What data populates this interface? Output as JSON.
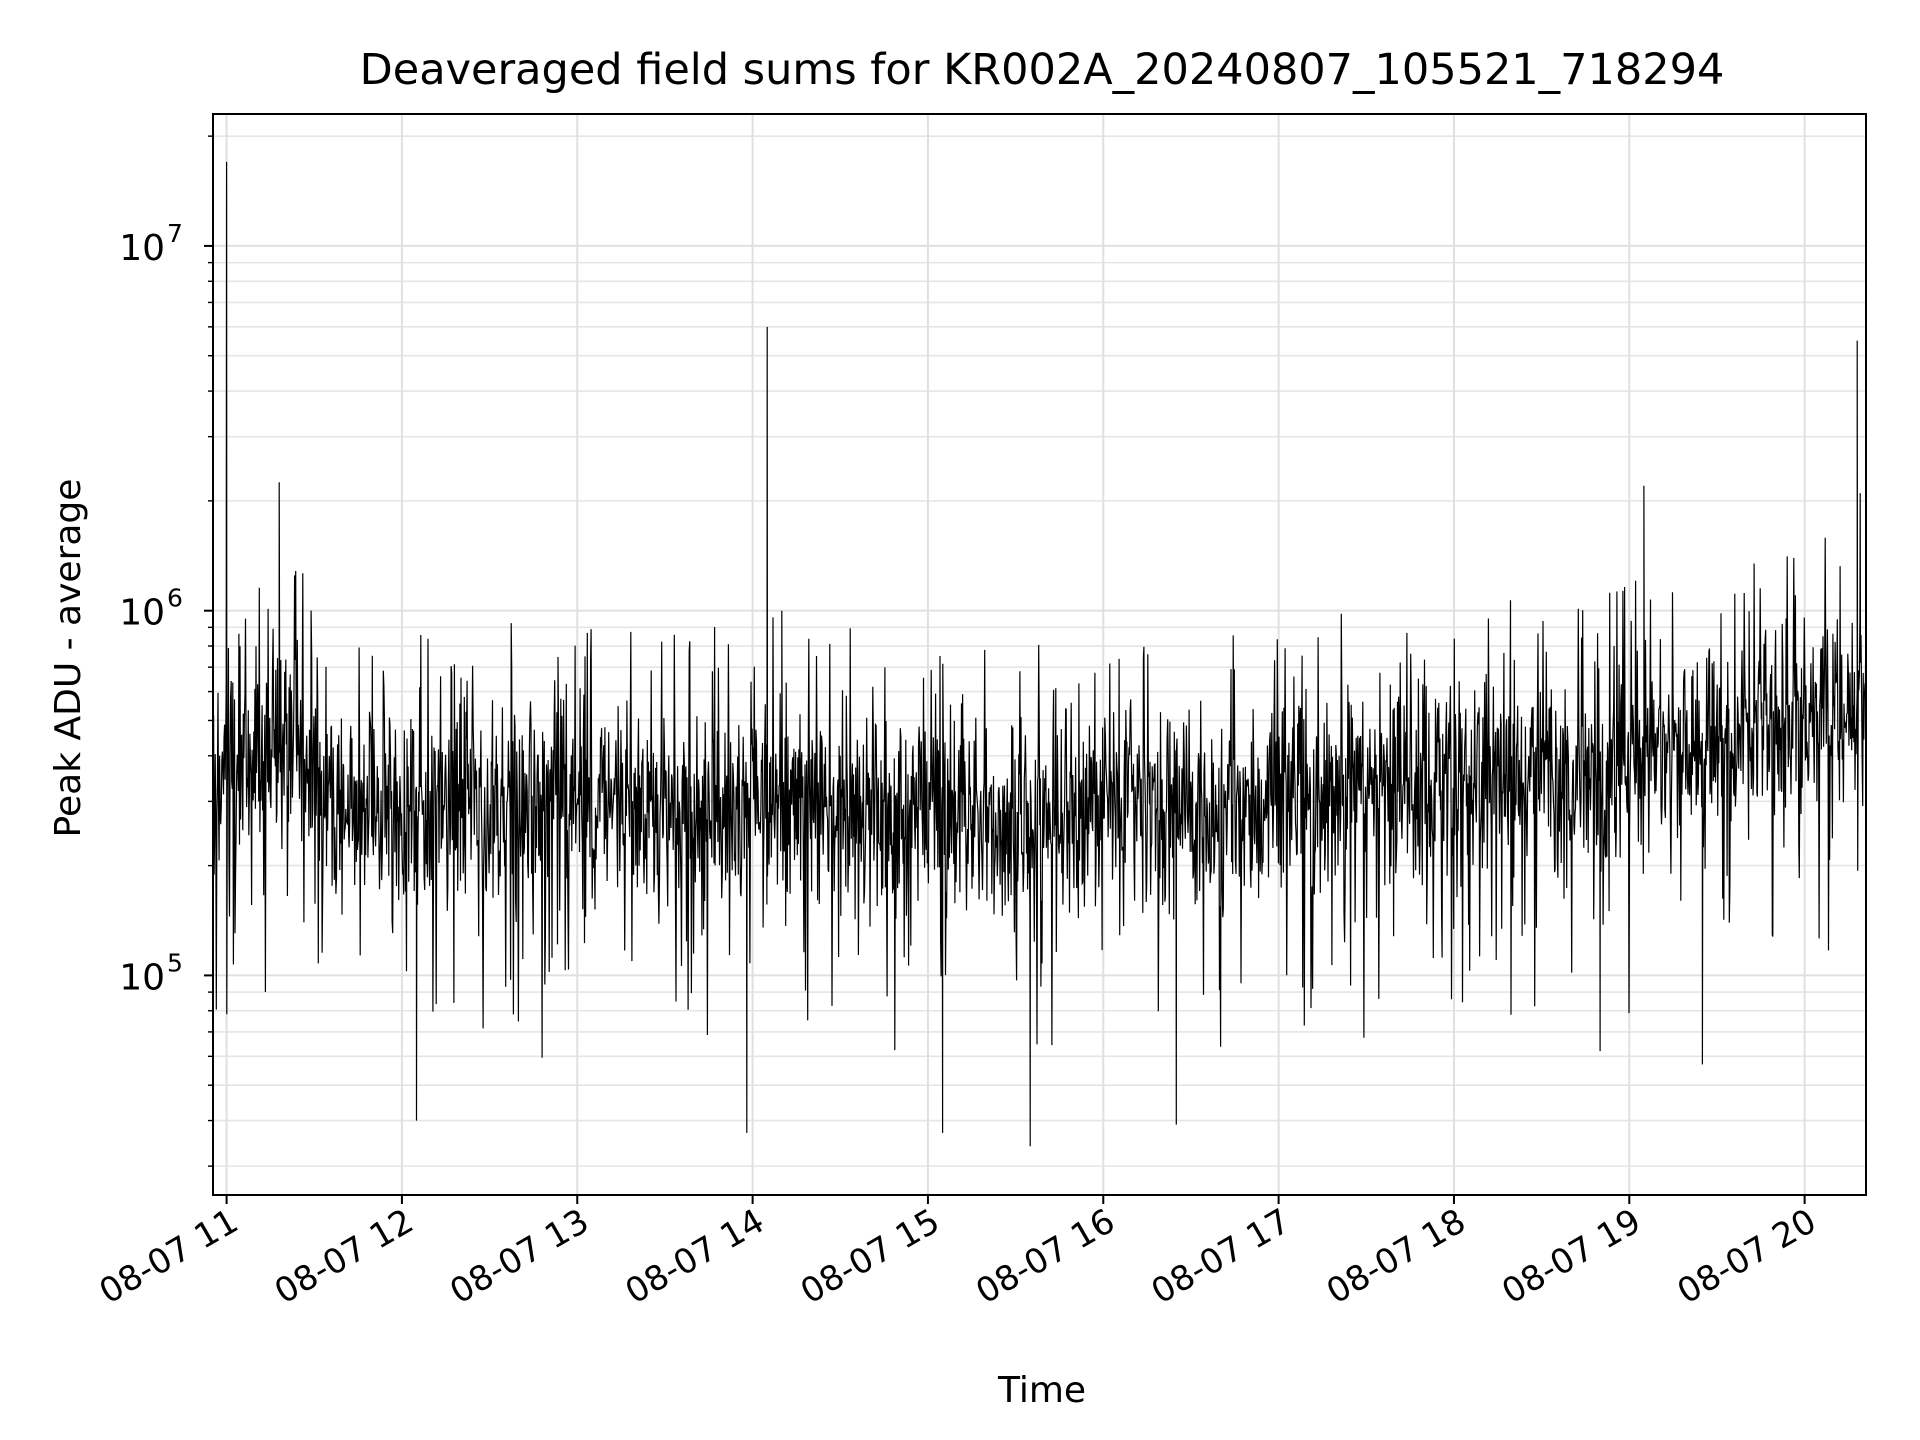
{
  "chart_data": {
    "type": "line",
    "title": "Deaveraged field sums for KR002A_20240807_105521_718294",
    "xlabel": "Time",
    "ylabel": "Peak ADU - average",
    "yscale": "log",
    "ylim": [
      25000,
      23000000
    ],
    "xlim": [
      "2024-08-07 10:55:21",
      "2024-08-07 20:21:00"
    ],
    "x_ticks": [
      {
        "value": "2024-08-07 11:00",
        "label": "08-07 11"
      },
      {
        "value": "2024-08-07 12:00",
        "label": "08-07 12"
      },
      {
        "value": "2024-08-07 13:00",
        "label": "08-07 13"
      },
      {
        "value": "2024-08-07 14:00",
        "label": "08-07 14"
      },
      {
        "value": "2024-08-07 15:00",
        "label": "08-07 15"
      },
      {
        "value": "2024-08-07 16:00",
        "label": "08-07 16"
      },
      {
        "value": "2024-08-07 17:00",
        "label": "08-07 17"
      },
      {
        "value": "2024-08-07 18:00",
        "label": "08-07 18"
      },
      {
        "value": "2024-08-07 19:00",
        "label": "08-07 19"
      },
      {
        "value": "2024-08-07 20:00",
        "label": "08-07 20"
      }
    ],
    "y_ticks": [
      {
        "value": 100000,
        "base": "10",
        "exp": "5"
      },
      {
        "value": 1000000,
        "base": "10",
        "exp": "6"
      },
      {
        "value": 10000000,
        "base": "10",
        "exp": "7"
      }
    ],
    "grid": true,
    "line_color": "#000000",
    "series": [
      {
        "x": [
          "2024-08-07 10:55:21",
          "2024-08-07 11:00",
          "2024-08-07 11:20",
          "2024-08-07 11:40",
          "2024-08-07 12:00",
          "2024-08-07 12:20",
          "2024-08-07 12:40",
          "2024-08-07 13:00",
          "2024-08-07 13:20",
          "2024-08-07 13:40",
          "2024-08-07 14:00",
          "2024-08-07 14:20",
          "2024-08-07 14:40",
          "2024-08-07 15:00",
          "2024-08-07 15:20",
          "2024-08-07 15:40",
          "2024-08-07 16:00",
          "2024-08-07 16:20",
          "2024-08-07 16:40",
          "2024-08-07 17:00",
          "2024-08-07 17:20",
          "2024-08-07 17:40",
          "2024-08-07 18:00",
          "2024-08-07 18:20",
          "2024-08-07 18:40",
          "2024-08-07 19:00",
          "2024-08-07 19:20",
          "2024-08-07 19:40",
          "2024-08-07 20:00",
          "2024-08-07 20:21"
        ],
        "y": [
          300000,
          350000,
          450000,
          300000,
          290000,
          300000,
          290000,
          300000,
          280000,
          280000,
          290000,
          300000,
          280000,
          290000,
          270000,
          250000,
          290000,
          300000,
          280000,
          300000,
          320000,
          330000,
          340000,
          360000,
          340000,
          380000,
          400000,
          450000,
          520000,
          560000
        ],
        "spikes": [
          {
            "x": "2024-08-07 11:00",
            "y": 17000000
          },
          {
            "x": "2024-08-07 11:18",
            "y": 2250000
          },
          {
            "x": "2024-08-07 14:05",
            "y": 6000000
          },
          {
            "x": "2024-08-07 14:10",
            "y": 1000000
          },
          {
            "x": "2024-08-07 19:05",
            "y": 2200000
          },
          {
            "x": "2024-08-07 20:18",
            "y": 5500000
          },
          {
            "x": "2024-08-07 20:19",
            "y": 2100000
          }
        ],
        "dips": [
          {
            "x": "2024-08-07 12:05",
            "y": 40000
          },
          {
            "x": "2024-08-07 13:58",
            "y": 37000
          },
          {
            "x": "2024-08-07 15:05",
            "y": 37000
          },
          {
            "x": "2024-08-07 15:35",
            "y": 34000
          },
          {
            "x": "2024-08-07 16:25",
            "y": 39000
          },
          {
            "x": "2024-08-07 18:50",
            "y": 62000
          },
          {
            "x": "2024-08-07 19:25",
            "y": 57000
          }
        ]
      }
    ]
  }
}
